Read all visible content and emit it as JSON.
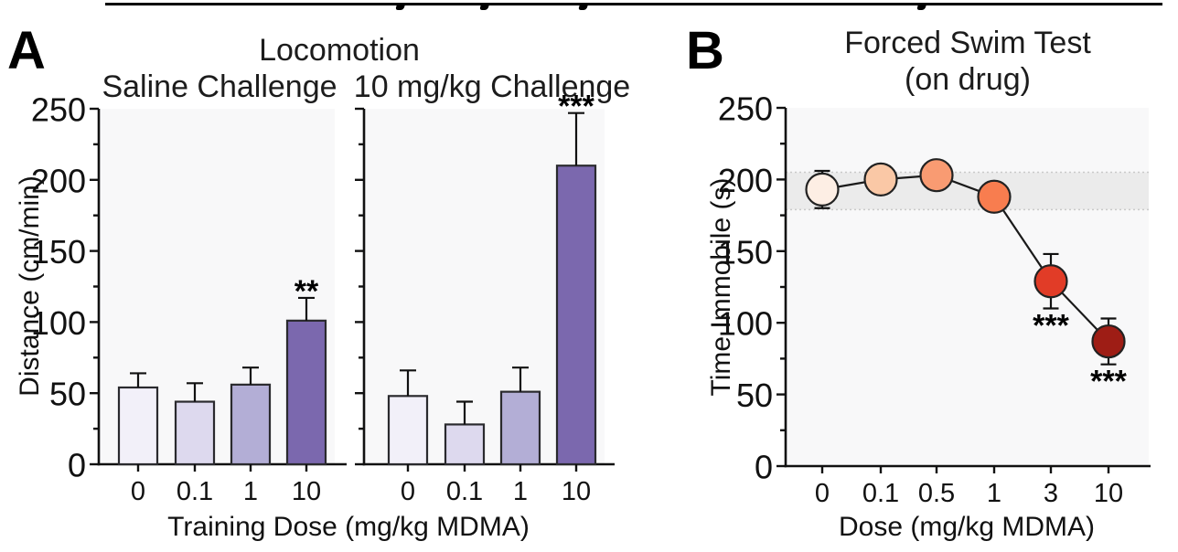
{
  "panels": {
    "a": "A",
    "b": "B"
  },
  "chart_data": [
    {
      "panel": "A",
      "type": "bar",
      "title": "Locomotion",
      "xlabel": "Training Dose (mg/kg MDMA)",
      "ylabel": "Distance (cm/min)",
      "ylim": [
        0,
        250
      ],
      "yticks": [
        0,
        50,
        100,
        150,
        200,
        250
      ],
      "minor_ytick_step": 25,
      "categories": [
        "0",
        "0.1",
        "1",
        "10"
      ],
      "series": [
        {
          "name": "Saline Challenge",
          "values": [
            54,
            44,
            56,
            101
          ],
          "sem": [
            10,
            13,
            12,
            16
          ],
          "significance": [
            "",
            "",
            "",
            "**"
          ]
        },
        {
          "name": "10 mg/kg Challenge",
          "values": [
            48,
            28,
            51,
            210
          ],
          "sem": [
            18,
            16,
            17,
            37
          ],
          "significance": [
            "",
            "",
            "",
            "***"
          ]
        }
      ],
      "bar_colors": [
        "#f2f0f9",
        "#ddd9ee",
        "#b3aed6",
        "#7b68ae"
      ],
      "bar_outline": "#2a2a2e",
      "plot_background": "#f8f8f9"
    },
    {
      "panel": "B",
      "type": "scatter-line",
      "title": "Forced Swim Test",
      "subtitle": "(on drug)",
      "xlabel": "Dose (mg/kg MDMA)",
      "ylabel": "Time Immobile (s)",
      "ylim": [
        0,
        250
      ],
      "yticks": [
        0,
        50,
        100,
        150,
        200,
        250
      ],
      "minor_ytick_step": 25,
      "categories": [
        "0",
        "0.1",
        "0.5",
        "1",
        "3",
        "10"
      ],
      "values": [
        193,
        200,
        203,
        188,
        129,
        87
      ],
      "sem": [
        13,
        7,
        7,
        7,
        19,
        16
      ],
      "significance": [
        "",
        "",
        "",
        "",
        "***",
        "***"
      ],
      "marker_colors": [
        "#fdeee4",
        "#fac8a6",
        "#f99b72",
        "#f87d4f",
        "#e13c27",
        "#9e1d15"
      ],
      "marker_outline": "#222222",
      "line_color": "#1a1a1a",
      "reference_band": {
        "low": 179,
        "high": 205,
        "color": "#ebebeb"
      },
      "plot_background": "#f8f8f9"
    }
  ]
}
